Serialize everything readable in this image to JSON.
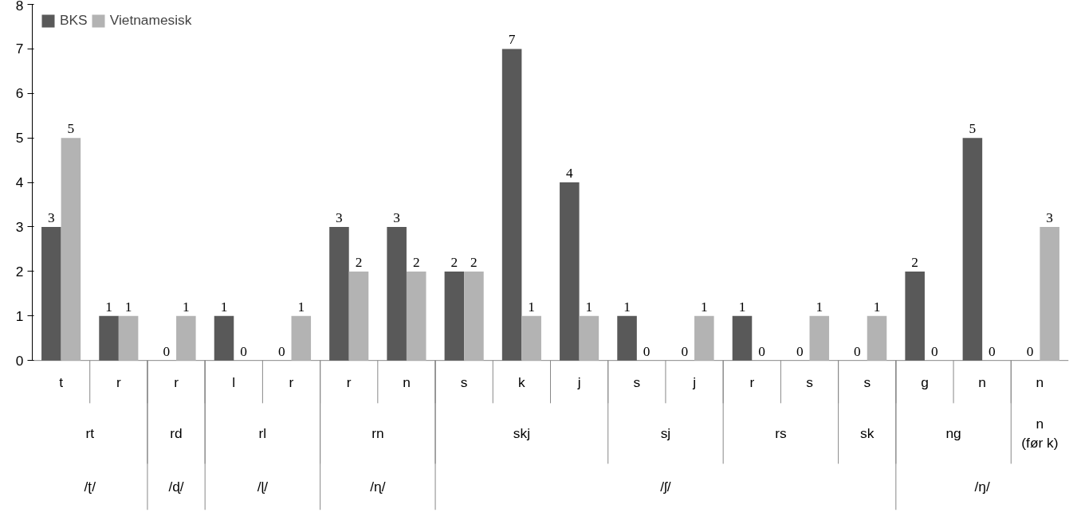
{
  "chart_data": {
    "type": "bar",
    "categories": [
      [
        "/ʈ/",
        "rt",
        "t"
      ],
      [
        null,
        null,
        "r"
      ],
      [
        "/ɖ/",
        "rd",
        "r"
      ],
      [
        "/ɭ/",
        "rl",
        "l"
      ],
      [
        null,
        null,
        "r"
      ],
      [
        "/ɳ/",
        "rn",
        "r"
      ],
      [
        null,
        null,
        "n"
      ],
      [
        "/ʃ/",
        "skj",
        "s"
      ],
      [
        null,
        null,
        "k"
      ],
      [
        null,
        null,
        "j"
      ],
      [
        null,
        "sj",
        "s"
      ],
      [
        null,
        null,
        "j"
      ],
      [
        null,
        "rs",
        "r"
      ],
      [
        null,
        null,
        "s"
      ],
      [
        null,
        "sk",
        "s"
      ],
      [
        "/ŋ/",
        "ng",
        "g"
      ],
      [
        null,
        null,
        "n"
      ],
      [
        null,
        "n\n(før k)",
        "n"
      ]
    ],
    "series": [
      {
        "name": "BKS",
        "color": "#595959",
        "values": [
          3,
          1,
          0,
          1,
          0,
          3,
          3,
          2,
          7,
          4,
          1,
          0,
          1,
          0,
          0,
          2,
          5,
          0
        ]
      },
      {
        "name": "Vietnamesisk",
        "color": "#b3b3b3",
        "values": [
          5,
          1,
          1,
          0,
          1,
          2,
          2,
          2,
          1,
          1,
          0,
          1,
          0,
          1,
          1,
          0,
          0,
          3
        ]
      }
    ],
    "ylim": [
      0,
      8
    ],
    "yticks": [
      0,
      1,
      2,
      3,
      4,
      5,
      6,
      7,
      8
    ],
    "grid": false,
    "legend": "top left",
    "data_labels": true
  }
}
